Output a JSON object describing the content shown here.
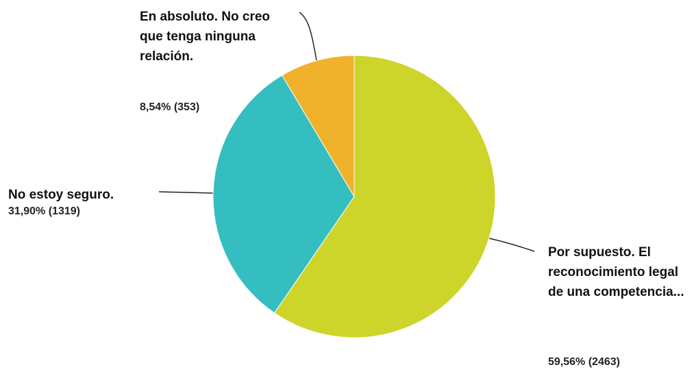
{
  "chart_data": {
    "type": "pie",
    "categories": [
      "Por supuesto. El reconocimiento legal de una competencia...",
      "No estoy seguro.",
      "En absoluto. No creo que tenga ninguna relación."
    ],
    "values": [
      59.56,
      31.9,
      8.54
    ],
    "value_labels": [
      "59,56% (2463)",
      "31,90% (1319)",
      "8,54% (353)"
    ],
    "colors": [
      "#cdd42a",
      "#34bec0",
      "#f0b12b"
    ]
  }
}
